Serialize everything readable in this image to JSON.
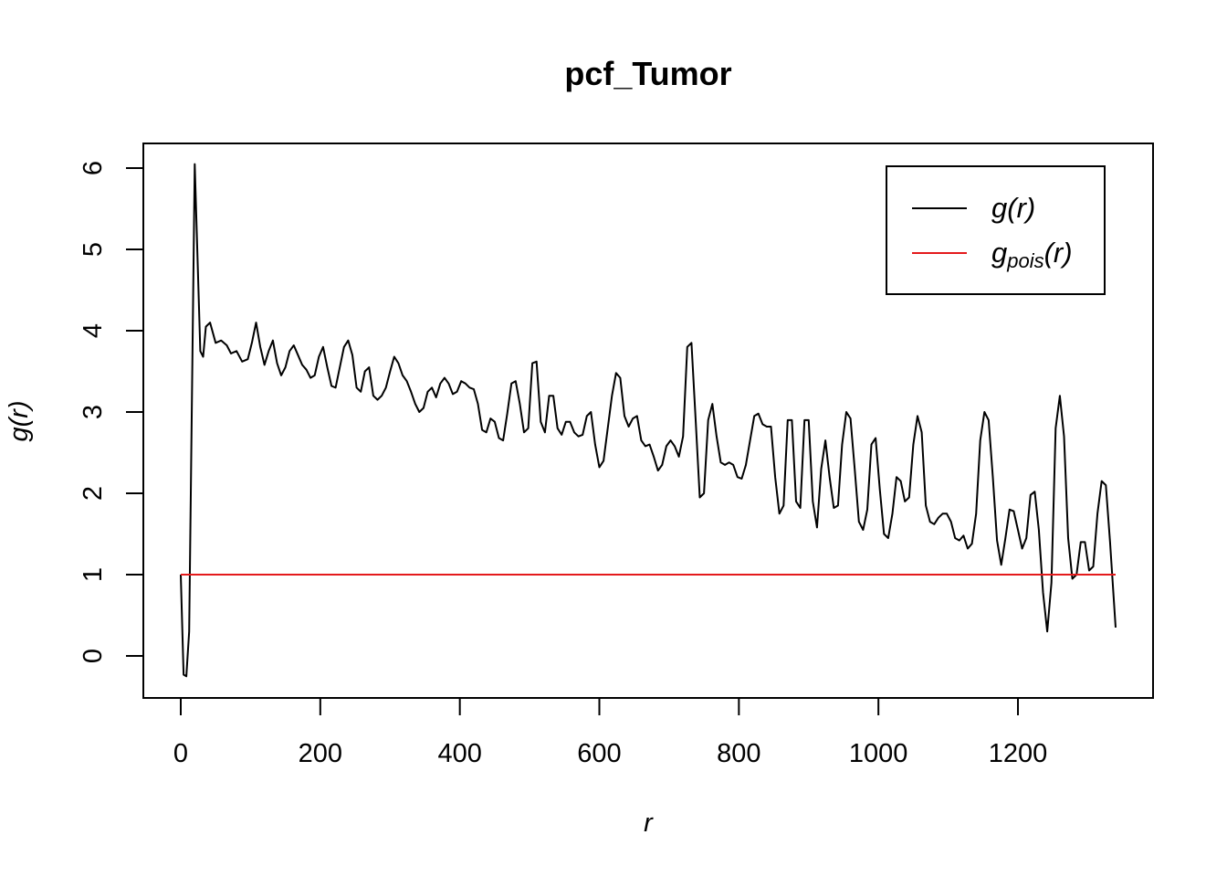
{
  "chart_data": {
    "type": "line",
    "title": "pcf_Tumor",
    "xlabel": "r",
    "ylabel": "g(r)",
    "xlim": [
      0,
      1340
    ],
    "ylim": [
      -0.5,
      6.3
    ],
    "xticks": [
      0,
      200,
      400,
      600,
      800,
      1000,
      1200
    ],
    "yticks": [
      0,
      1,
      2,
      3,
      4,
      5,
      6
    ],
    "grid": false,
    "legend_position": "top-right",
    "legend": [
      {
        "base": "g",
        "sub": "",
        "arg": "(r)",
        "color": "#000000"
      },
      {
        "base": "g",
        "sub": "pois",
        "arg": "(r)",
        "color": "#e41a1c"
      }
    ],
    "series": [
      {
        "name": "g(r)",
        "color": "#000000",
        "x": [
          0,
          4,
          8,
          12,
          20,
          28,
          32,
          36,
          42,
          50,
          58,
          66,
          72,
          80,
          88,
          96,
          102,
          108,
          114,
          120,
          126,
          132,
          138,
          144,
          150,
          156,
          162,
          168,
          174,
          180,
          186,
          192,
          198,
          204,
          210,
          216,
          222,
          228,
          234,
          240,
          246,
          252,
          258,
          264,
          270,
          276,
          282,
          288,
          294,
          300,
          306,
          312,
          318,
          324,
          330,
          336,
          342,
          348,
          354,
          360,
          366,
          372,
          378,
          384,
          390,
          396,
          402,
          408,
          414,
          420,
          426,
          432,
          438,
          444,
          450,
          456,
          462,
          468,
          474,
          480,
          486,
          492,
          498,
          504,
          510,
          516,
          522,
          528,
          534,
          540,
          546,
          552,
          558,
          564,
          570,
          576,
          582,
          588,
          594,
          600,
          606,
          612,
          618,
          624,
          630,
          636,
          642,
          648,
          654,
          660,
          666,
          672,
          678,
          684,
          690,
          696,
          702,
          708,
          714,
          720,
          726,
          732,
          738,
          744,
          750,
          756,
          762,
          768,
          774,
          780,
          786,
          792,
          798,
          804,
          810,
          816,
          822,
          828,
          834,
          840,
          846,
          852,
          858,
          864,
          870,
          876,
          882,
          888,
          894,
          900,
          906,
          912,
          918,
          924,
          930,
          936,
          942,
          948,
          954,
          960,
          966,
          972,
          978,
          984,
          990,
          996,
          1002,
          1008,
          1014,
          1020,
          1026,
          1032,
          1038,
          1044,
          1050,
          1056,
          1062,
          1068,
          1074,
          1080,
          1086,
          1092,
          1098,
          1104,
          1110,
          1116,
          1122,
          1128,
          1134,
          1140,
          1146,
          1152,
          1158,
          1164,
          1170,
          1176,
          1182,
          1188,
          1194,
          1200,
          1206,
          1212,
          1218,
          1224,
          1230,
          1236,
          1242,
          1248,
          1254,
          1260,
          1266,
          1272,
          1278,
          1284,
          1290,
          1296,
          1302,
          1308,
          1314,
          1320,
          1326,
          1332,
          1340
        ],
        "y": [
          1.0,
          -0.23,
          -0.25,
          0.3,
          6.05,
          3.75,
          3.68,
          4.05,
          4.1,
          3.85,
          3.88,
          3.82,
          3.72,
          3.75,
          3.62,
          3.65,
          3.85,
          4.1,
          3.8,
          3.58,
          3.75,
          3.88,
          3.6,
          3.45,
          3.55,
          3.75,
          3.82,
          3.7,
          3.58,
          3.52,
          3.42,
          3.45,
          3.68,
          3.8,
          3.55,
          3.32,
          3.3,
          3.55,
          3.8,
          3.88,
          3.7,
          3.3,
          3.25,
          3.5,
          3.55,
          3.2,
          3.15,
          3.2,
          3.3,
          3.5,
          3.68,
          3.6,
          3.45,
          3.38,
          3.25,
          3.1,
          3.0,
          3.05,
          3.25,
          3.3,
          3.18,
          3.35,
          3.42,
          3.35,
          3.22,
          3.25,
          3.38,
          3.35,
          3.3,
          3.28,
          3.1,
          2.78,
          2.75,
          2.92,
          2.88,
          2.68,
          2.65,
          2.98,
          3.35,
          3.38,
          3.1,
          2.75,
          2.8,
          3.6,
          3.62,
          2.88,
          2.75,
          3.2,
          3.2,
          2.8,
          2.72,
          2.88,
          2.88,
          2.75,
          2.7,
          2.72,
          2.95,
          3.0,
          2.6,
          2.32,
          2.4,
          2.8,
          3.2,
          3.48,
          3.42,
          2.95,
          2.82,
          2.92,
          2.95,
          2.65,
          2.58,
          2.6,
          2.45,
          2.28,
          2.35,
          2.58,
          2.65,
          2.58,
          2.45,
          2.7,
          3.8,
          3.85,
          2.9,
          1.95,
          2.0,
          2.9,
          3.1,
          2.7,
          2.38,
          2.35,
          2.38,
          2.35,
          2.2,
          2.18,
          2.35,
          2.65,
          2.95,
          2.98,
          2.85,
          2.82,
          2.82,
          2.2,
          1.75,
          1.85,
          2.9,
          2.9,
          1.9,
          1.82,
          2.9,
          2.9,
          1.9,
          1.58,
          2.3,
          2.65,
          2.2,
          1.82,
          1.85,
          2.6,
          3.0,
          2.92,
          2.3,
          1.65,
          1.55,
          1.8,
          2.6,
          2.68,
          2.05,
          1.5,
          1.45,
          1.75,
          2.2,
          2.15,
          1.9,
          1.95,
          2.6,
          2.95,
          2.75,
          1.85,
          1.65,
          1.62,
          1.7,
          1.75,
          1.75,
          1.65,
          1.45,
          1.42,
          1.48,
          1.32,
          1.38,
          1.75,
          2.65,
          3.0,
          2.9,
          2.2,
          1.42,
          1.12,
          1.45,
          1.8,
          1.78,
          1.55,
          1.32,
          1.45,
          1.98,
          2.02,
          1.55,
          0.78,
          0.3,
          0.9,
          2.8,
          3.2,
          2.7,
          1.45,
          0.95,
          1.0,
          1.4,
          1.4,
          1.05,
          1.1,
          1.75,
          2.15,
          2.1,
          1.4,
          0.35
        ]
      },
      {
        "name": "gpois(r)",
        "color": "#e41a1c",
        "x": [
          0,
          1340
        ],
        "y": [
          1,
          1
        ]
      }
    ]
  }
}
